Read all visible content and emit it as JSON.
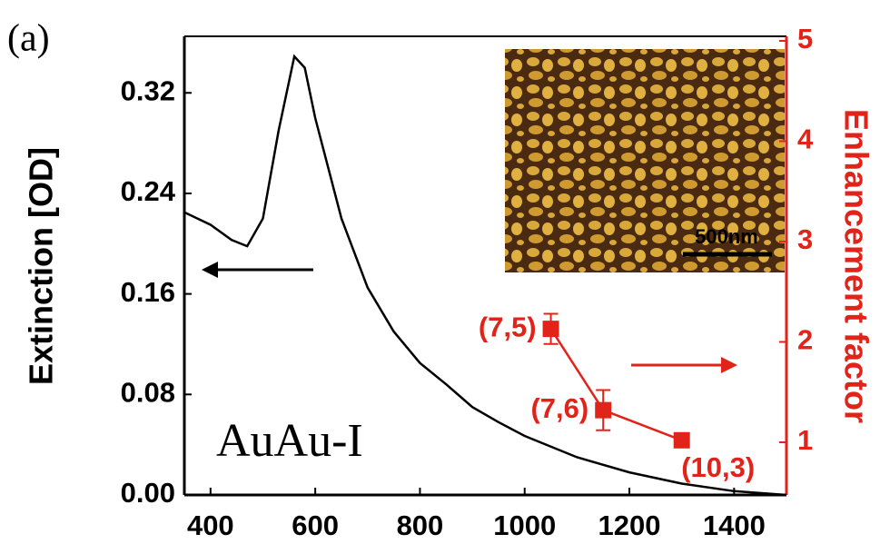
{
  "chart_data": {
    "type": "line",
    "panel_label": "(a)",
    "annotation": "AuAu-I",
    "y_label": "Extinction [OD]",
    "y2_label": "Enhancement factor",
    "xlim": [
      350,
      1500
    ],
    "xticks": [
      400,
      600,
      800,
      1000,
      1200,
      1400
    ],
    "ylim": [
      0,
      0.365
    ],
    "yticks": [
      {
        "value": 0,
        "label": "0.00"
      },
      0.08,
      0.16,
      0.24,
      0.32
    ],
    "y2lim": [
      0.475,
      5.045
    ],
    "y2ticks": [
      1,
      2,
      3,
      4,
      5
    ],
    "series": [
      {
        "type": "line",
        "color": "#000000",
        "x": [
          350,
          400,
          440,
          470,
          500,
          530,
          560,
          580,
          600,
          650,
          700,
          750,
          800,
          850,
          900,
          950,
          1000,
          1100,
          1200,
          1300,
          1400,
          1500
        ],
        "values": [
          0.225,
          0.215,
          0.203,
          0.198,
          0.22,
          0.29,
          0.349,
          0.34,
          0.3,
          0.22,
          0.165,
          0.13,
          0.105,
          0.088,
          0.07,
          0.058,
          0.047,
          0.03,
          0.018,
          0.009,
          0.003,
          0.0
        ]
      },
      {
        "type": "scatter",
        "axis": "y2",
        "color": "#e2231a",
        "x": [
          1050,
          1150,
          1300
        ],
        "values": [
          2.13,
          1.32,
          1.02
        ],
        "errors": [
          0.15,
          0.2,
          0.05
        ],
        "point_labels": [
          "(7,5)",
          "(7,6)",
          "(10,3)"
        ]
      }
    ],
    "inset": {
      "scale_label": "500nm"
    }
  }
}
